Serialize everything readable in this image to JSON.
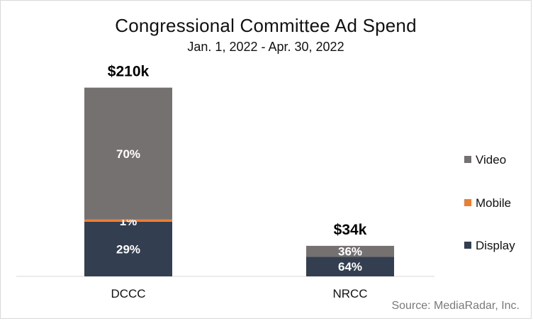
{
  "chart": {
    "title": "Congressional Committee Ad Spend",
    "subtitle": "Jan. 1, 2022 - Apr. 30, 2022",
    "source": "Source: MediaRadar, Inc."
  },
  "chart_data": {
    "type": "bar",
    "stacked": true,
    "normalized": true,
    "categories": [
      "DCCC",
      "NRCC"
    ],
    "totals": [
      210000,
      34000
    ],
    "total_labels": [
      "$210k",
      "$34k"
    ],
    "series": [
      {
        "name": "Display",
        "values": [
          29,
          64
        ],
        "labels": [
          "29%",
          "64%"
        ],
        "color": "#333f50"
      },
      {
        "name": "Mobile",
        "values": [
          1,
          0
        ],
        "labels": [
          "1%",
          ""
        ],
        "color": "#ed7d31"
      },
      {
        "name": "Video",
        "values": [
          70,
          36
        ],
        "labels": [
          "70%",
          "36%"
        ],
        "color": "#767171"
      }
    ],
    "legend_order": [
      "Video",
      "Mobile",
      "Display"
    ],
    "legend_position": "right",
    "grid": false,
    "title": "Congressional Committee Ad Spend",
    "xlabel": "",
    "ylabel": ""
  }
}
